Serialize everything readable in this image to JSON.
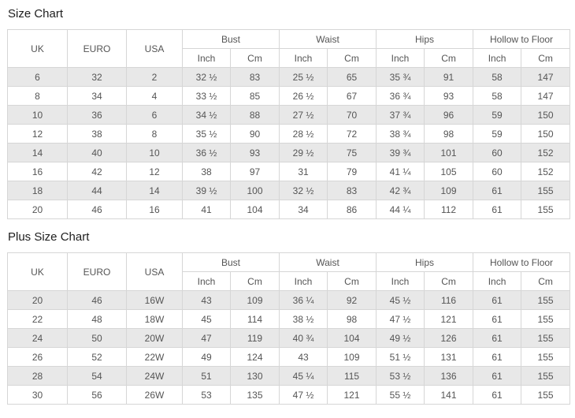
{
  "colors": {
    "stripe": "#e8e8e8",
    "border": "#d6d6d6",
    "text": "#555555",
    "title": "#1e1e1e",
    "background": "#ffffff"
  },
  "tables": [
    {
      "title": "Size Chart",
      "id_columns": [
        "UK",
        "EURO",
        "USA"
      ],
      "measure_groups": [
        "Bust",
        "Waist",
        "Hips",
        "Hollow to Floor"
      ],
      "unit_headers": [
        "Inch",
        "Cm"
      ],
      "rows": [
        [
          "6",
          "32",
          "2",
          "32 ½",
          "83",
          "25 ½",
          "65",
          "35 ¾",
          "91",
          "58",
          "147"
        ],
        [
          "8",
          "34",
          "4",
          "33 ½",
          "85",
          "26 ½",
          "67",
          "36 ¾",
          "93",
          "58",
          "147"
        ],
        [
          "10",
          "36",
          "6",
          "34 ½",
          "88",
          "27 ½",
          "70",
          "37 ¾",
          "96",
          "59",
          "150"
        ],
        [
          "12",
          "38",
          "8",
          "35 ½",
          "90",
          "28 ½",
          "72",
          "38 ¾",
          "98",
          "59",
          "150"
        ],
        [
          "14",
          "40",
          "10",
          "36 ½",
          "93",
          "29 ½",
          "75",
          "39 ¾",
          "101",
          "60",
          "152"
        ],
        [
          "16",
          "42",
          "12",
          "38",
          "97",
          "31",
          "79",
          "41 ¼",
          "105",
          "60",
          "152"
        ],
        [
          "18",
          "44",
          "14",
          "39 ½",
          "100",
          "32 ½",
          "83",
          "42 ¾",
          "109",
          "61",
          "155"
        ],
        [
          "20",
          "46",
          "16",
          "41",
          "104",
          "34",
          "86",
          "44 ¼",
          "112",
          "61",
          "155"
        ]
      ]
    },
    {
      "title": "Plus Size Chart",
      "id_columns": [
        "UK",
        "EURO",
        "USA"
      ],
      "measure_groups": [
        "Bust",
        "Waist",
        "Hips",
        "Hollow to Floor"
      ],
      "unit_headers": [
        "Inch",
        "Cm"
      ],
      "rows": [
        [
          "20",
          "46",
          "16W",
          "43",
          "109",
          "36 ¼",
          "92",
          "45 ½",
          "116",
          "61",
          "155"
        ],
        [
          "22",
          "48",
          "18W",
          "45",
          "114",
          "38 ½",
          "98",
          "47 ½",
          "121",
          "61",
          "155"
        ],
        [
          "24",
          "50",
          "20W",
          "47",
          "119",
          "40 ¾",
          "104",
          "49 ½",
          "126",
          "61",
          "155"
        ],
        [
          "26",
          "52",
          "22W",
          "49",
          "124",
          "43",
          "109",
          "51 ½",
          "131",
          "61",
          "155"
        ],
        [
          "28",
          "54",
          "24W",
          "51",
          "130",
          "45 ¼",
          "115",
          "53 ½",
          "136",
          "61",
          "155"
        ],
        [
          "30",
          "56",
          "26W",
          "53",
          "135",
          "47 ½",
          "121",
          "55 ½",
          "141",
          "61",
          "155"
        ]
      ]
    }
  ]
}
